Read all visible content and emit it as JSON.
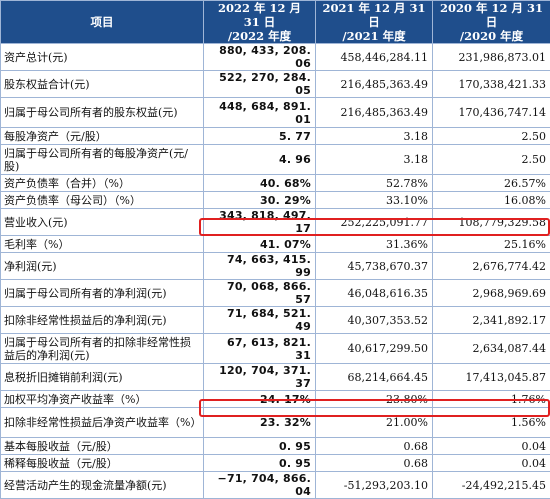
{
  "header": {
    "item": "项目",
    "col1": [
      "2022 年 12 月 31 日",
      "/2022 年度"
    ],
    "col2": [
      "2021 年 12 月 31 日",
      "/2021 年度"
    ],
    "col3": [
      "2020 年 12 月 31 日",
      "/2020 年度"
    ]
  },
  "rows": [
    {
      "label": "资产总计(元)",
      "v2022": "880, 433, 208. 06",
      "v2021": "458,446,284.11",
      "v2020": "231,986,873.01"
    },
    {
      "label": "股东权益合计(元)",
      "v2022": "522, 270, 284. 05",
      "v2021": "216,485,363.49",
      "v2020": "170,338,421.33"
    },
    {
      "label": "归属于母公司所有者的股东权益(元)",
      "v2022": "448, 684, 891. 01",
      "v2021": "216,485,363.49",
      "v2020": "170,436,747.14"
    },
    {
      "label": "每股净资产（元/股）",
      "v2022": "5. 77",
      "v2021": "3.18",
      "v2020": "2.50"
    },
    {
      "label": "归属于母公司所有者的每股净资产(元/股)",
      "v2022": "4. 96",
      "v2021": "3.18",
      "v2020": "2.50"
    },
    {
      "label": "资产负债率（合并）（%）",
      "v2022": "40. 68%",
      "v2021": "52.78%",
      "v2020": "26.57%"
    },
    {
      "label": "资产负债率（母公司）（%）",
      "v2022": "30. 29%",
      "v2021": "33.10%",
      "v2020": "16.08%"
    },
    {
      "label": "营业收入(元)",
      "v2022": "343, 818, 497. 17",
      "v2021": "252,225,091.77",
      "v2020": "108,779,329.58"
    },
    {
      "label": "毛利率（%）",
      "v2022": "41. 07%",
      "v2021": "31.36%",
      "v2020": "25.16%"
    },
    {
      "label": "净利润(元)",
      "v2022": "74, 663, 415. 99",
      "v2021": "45,738,670.37",
      "v2020": "2,676,774.42"
    },
    {
      "label": "归属于母公司所有者的净利润(元)",
      "v2022": "70, 068, 866. 57",
      "v2021": "46,048,616.35",
      "v2020": "2,968,969.69"
    },
    {
      "label": "扣除非经常性损益后的净利润(元)",
      "v2022": "71, 684, 521. 49",
      "v2021": "40,307,353.52",
      "v2020": "2,341,892.17"
    },
    {
      "label": "归属于母公司所有者的扣除非经常性损益后的净利润(元)",
      "v2022": "67, 613, 821. 31",
      "v2021": "40,617,299.50",
      "v2020": "2,634,087.44"
    },
    {
      "label": "息税折旧摊销前利润(元)",
      "v2022": "120, 704, 371. 37",
      "v2021": "68,214,664.45",
      "v2020": "17,413,045.87"
    },
    {
      "label": "加权平均净资产收益率（%）",
      "v2022": "24. 17%",
      "v2021": "23.80%",
      "v2020": "1.76%"
    },
    {
      "label": "扣除非经常性损益后净资产收益率（%）",
      "v2022": "23. 32%",
      "v2021": "21.00%",
      "v2020": "1.56%"
    },
    {
      "label": "基本每股收益（元/股）",
      "v2022": "0. 95",
      "v2021": "0.68",
      "v2020": "0.04"
    },
    {
      "label": "稀释每股收益（元/股）",
      "v2022": "0. 95",
      "v2021": "0.68",
      "v2020": "0.04"
    },
    {
      "label": "经营活动产生的现金流量净额(元)",
      "v2022": "−71, 704, 866. 04",
      "v2021": "-51,293,203.10",
      "v2020": "-24,492,215.45"
    }
  ],
  "highlight_color": "#e02020",
  "header_color": "#1f4e8c"
}
